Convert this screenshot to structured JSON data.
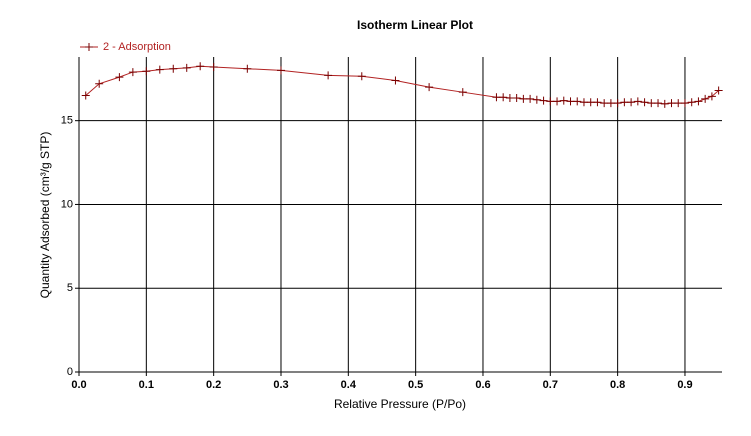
{
  "chart_data": {
    "type": "line",
    "title": "Isotherm Linear Plot",
    "x_label": "Relative Pressure (P/Po)",
    "y_label": "Quantity Adsorbed (cm³/g STP)",
    "x": [
      0.01,
      0.03,
      0.06,
      0.08,
      0.1,
      0.12,
      0.14,
      0.16,
      0.18,
      0.2,
      0.25,
      0.3,
      0.37,
      0.42,
      0.47,
      0.52,
      0.57,
      0.62,
      0.63,
      0.64,
      0.65,
      0.66,
      0.67,
      0.68,
      0.69,
      0.7,
      0.71,
      0.72,
      0.73,
      0.74,
      0.75,
      0.76,
      0.77,
      0.78,
      0.79,
      0.8,
      0.81,
      0.82,
      0.83,
      0.84,
      0.85,
      0.86,
      0.87,
      0.88,
      0.89,
      0.9,
      0.91,
      0.92,
      0.93,
      0.94,
      0.95
    ],
    "series": [
      {
        "name": "2 - Adsorption",
        "color": "#b22222",
        "values": [
          16.5,
          17.2,
          17.6,
          17.9,
          17.95,
          18.05,
          18.1,
          18.15,
          18.25,
          18.2,
          18.1,
          18.0,
          17.7,
          17.65,
          17.4,
          17.0,
          16.7,
          16.4,
          16.4,
          16.35,
          16.35,
          16.3,
          16.3,
          16.25,
          16.2,
          16.15,
          16.15,
          16.2,
          16.15,
          16.15,
          16.1,
          16.1,
          16.1,
          16.05,
          16.05,
          16.05,
          16.1,
          16.1,
          16.15,
          16.1,
          16.05,
          16.05,
          16.0,
          16.05,
          16.05,
          16.05,
          16.1,
          16.15,
          16.3,
          16.45,
          16.8
        ]
      }
    ],
    "xlim": [
      0,
      0.955
    ],
    "ylim": [
      0,
      18.8
    ],
    "xticks": [
      {
        "value": 0,
        "label": "0.0"
      },
      0.1,
      0.2,
      0.3,
      0.4,
      0.5,
      0.6,
      0.7,
      0.8,
      0.9
    ],
    "yticks": [
      0,
      5,
      10,
      15
    ],
    "grid": true
  }
}
